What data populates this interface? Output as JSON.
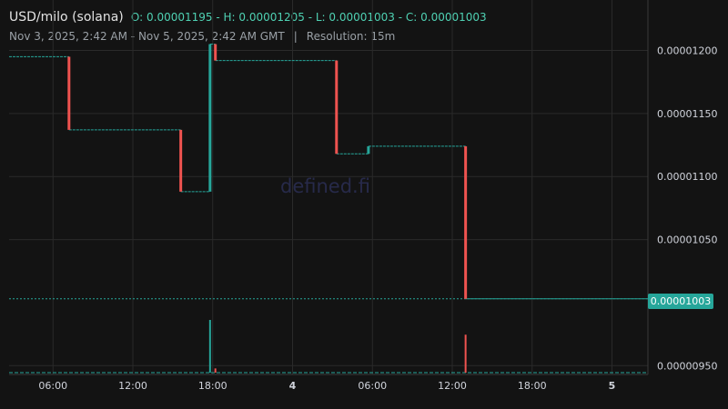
{
  "header": {
    "symbol": "USD/milo (solana)",
    "ohlc": "O: 0.00001195 - H: 0.00001205 - L: 0.00001003 - C: 0.00001003",
    "range": "Nov 3, 2025, 2:42 AM - Nov 5, 2025, 2:42 AM GMT",
    "separator": "|",
    "resolution": "Resolution: 15m"
  },
  "watermark": "defined.fi",
  "last_price_label": "0.00001003",
  "colors": {
    "up": "#26a69a",
    "down": "#ef5350",
    "background": "#131313",
    "grid": "#2a2a2a",
    "axis_text": "#d1d4dc"
  },
  "chart_data": {
    "type": "candlestick",
    "y_ticks": [
      "0.00001200",
      "0.00001150",
      "0.00001100",
      "0.00001050",
      "0.00000950"
    ],
    "y_tick_values": [
      1.2e-05,
      1.15e-05,
      1.1e-05,
      1.05e-05,
      9.5e-06
    ],
    "x_ticks": [
      {
        "label": "06:00",
        "t": 6,
        "bold": false
      },
      {
        "label": "12:00",
        "t": 12,
        "bold": false
      },
      {
        "label": "18:00",
        "t": 18,
        "bold": false
      },
      {
        "label": "4",
        "t": 24,
        "bold": true
      },
      {
        "label": "06:00",
        "t": 30,
        "bold": false
      },
      {
        "label": "12:00",
        "t": 36,
        "bold": false
      },
      {
        "label": "18:00",
        "t": 42,
        "bold": false
      },
      {
        "label": "5",
        "t": 48,
        "bold": true
      }
    ],
    "x_range_hours": [
      2.7,
      50.7
    ],
    "ylim": [
      9.43e-06,
      1.24e-05
    ],
    "last_price": 1.003e-05,
    "segments": [
      {
        "t0": 2.7,
        "t1": 7.2,
        "price": 1.195e-05
      },
      {
        "t0": 7.2,
        "t1": 15.6,
        "price": 1.137e-05
      },
      {
        "t0": 15.6,
        "t1": 17.8,
        "price": 1.088e-05
      },
      {
        "t0": 17.8,
        "t1": 18.2,
        "price": 1.205e-05
      },
      {
        "t0": 18.2,
        "t1": 27.3,
        "price": 1.192e-05
      },
      {
        "t0": 27.3,
        "t1": 29.7,
        "price": 1.118e-05
      },
      {
        "t0": 29.7,
        "t1": 37.0,
        "price": 1.124e-05
      },
      {
        "t0": 37.0,
        "t1": 50.7,
        "price": 1.003e-05
      }
    ],
    "moves": [
      {
        "t": 7.2,
        "from": 1.195e-05,
        "to": 1.137e-05,
        "dir": "down"
      },
      {
        "t": 15.6,
        "from": 1.137e-05,
        "to": 1.088e-05,
        "dir": "down"
      },
      {
        "t": 17.8,
        "from": 1.088e-05,
        "to": 1.205e-05,
        "dir": "up"
      },
      {
        "t": 18.2,
        "from": 1.205e-05,
        "to": 1.192e-05,
        "dir": "down"
      },
      {
        "t": 27.3,
        "from": 1.192e-05,
        "to": 1.118e-05,
        "dir": "down"
      },
      {
        "t": 29.7,
        "from": 1.118e-05,
        "to": 1.124e-05,
        "dir": "up"
      },
      {
        "t": 37.0,
        "from": 1.124e-05,
        "to": 1.003e-05,
        "dir": "down"
      }
    ],
    "volume": [
      {
        "t": 17.8,
        "rel": 1.0,
        "dir": "up"
      },
      {
        "t": 18.2,
        "rel": 0.08,
        "dir": "down"
      },
      {
        "t": 37.0,
        "rel": 0.72,
        "dir": "down"
      }
    ]
  }
}
